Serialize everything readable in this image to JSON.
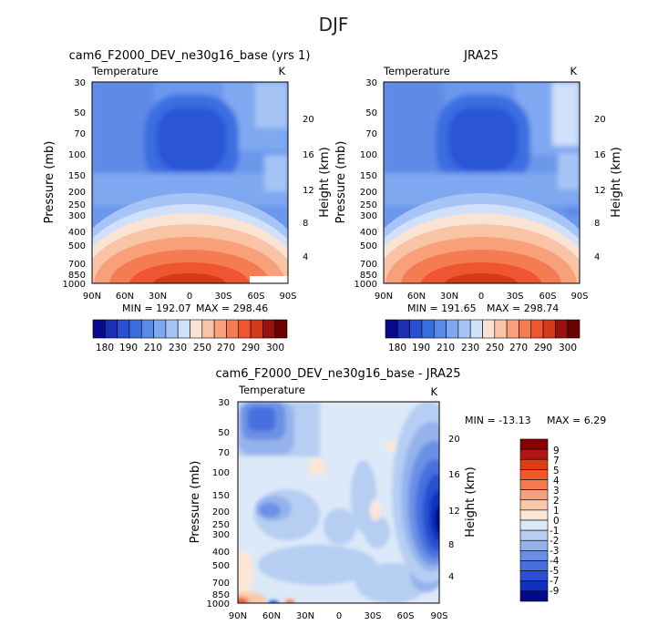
{
  "figure": {
    "title": "DJF"
  },
  "chart_data": [
    {
      "type": "heatmap",
      "title": "cam6_F2000_DEV_ne30g16_base (yrs 1)",
      "variable": "Temperature",
      "units": "K",
      "xlabel": "",
      "ylabel": "Pressure (mb)",
      "y2label": "Height (km)",
      "x_ticks": [
        "90N",
        "60N",
        "30N",
        "0",
        "30S",
        "60S",
        "90S"
      ],
      "y_ticks": [
        "30",
        "50",
        "70",
        "100",
        "150",
        "200",
        "250",
        "300",
        "400",
        "500",
        "700",
        "850",
        "1000"
      ],
      "y2_ticks": [
        "20",
        "16",
        "12",
        "8",
        "4"
      ],
      "min_label": "MIN = 192.07",
      "max_label": "MAX = 298.46",
      "min": 192.07,
      "max": 298.46,
      "colorbar_ticks": [
        "180",
        "190",
        "210",
        "230",
        "250",
        "270",
        "290",
        "300"
      ],
      "levels": [
        180,
        185,
        190,
        200,
        210,
        220,
        230,
        240,
        250,
        260,
        270,
        280,
        290,
        295,
        300
      ]
    },
    {
      "type": "heatmap",
      "title": "JRA25",
      "variable": "Temperature",
      "units": "K",
      "xlabel": "",
      "ylabel": "Pressure (mb)",
      "y2label": "Height (km)",
      "x_ticks": [
        "90N",
        "60N",
        "30N",
        "0",
        "30S",
        "60S",
        "90S"
      ],
      "y_ticks": [
        "30",
        "50",
        "70",
        "100",
        "150",
        "200",
        "250",
        "300",
        "400",
        "500",
        "700",
        "850",
        "1000"
      ],
      "y2_ticks": [
        "20",
        "16",
        "12",
        "8",
        "4"
      ],
      "min_label": "MIN = 191.65",
      "max_label": "MAX = 298.74",
      "min": 191.65,
      "max": 298.74,
      "colorbar_ticks": [
        "180",
        "190",
        "210",
        "230",
        "250",
        "270",
        "290",
        "300"
      ],
      "levels": [
        180,
        185,
        190,
        200,
        210,
        220,
        230,
        240,
        250,
        260,
        270,
        280,
        290,
        295,
        300
      ]
    },
    {
      "type": "heatmap",
      "title": "cam6_F2000_DEV_ne30g16_base - JRA25",
      "variable": "Temperature",
      "units": "K",
      "xlabel": "",
      "ylabel": "Pressure (mb)",
      "y2label": "Height (km)",
      "x_ticks": [
        "90N",
        "60N",
        "30N",
        "0",
        "30S",
        "60S",
        "90S"
      ],
      "y_ticks": [
        "30",
        "50",
        "70",
        "100",
        "150",
        "200",
        "250",
        "300",
        "400",
        "500",
        "700",
        "850",
        "1000"
      ],
      "y2_ticks": [
        "20",
        "16",
        "12",
        "8",
        "4"
      ],
      "min_label": "MIN = -13.13",
      "max_label": "MAX = 6.29",
      "min": -13.13,
      "max": 6.29,
      "colorbar_ticks": [
        "9",
        "7",
        "5",
        "4",
        "3",
        "2",
        "1",
        "0",
        "-1",
        "-2",
        "-3",
        "-4",
        "-5",
        "-7",
        "-9"
      ],
      "levels": [
        9,
        7,
        5,
        4,
        3,
        2,
        1,
        0,
        -1,
        -2,
        -3,
        -4,
        -5,
        -7,
        -9
      ]
    }
  ],
  "colors": {
    "abs_scale": [
      "#08088c",
      "#1a2fb4",
      "#2a4fd4",
      "#3a6ee0",
      "#5a8aea",
      "#7fa8f0",
      "#a6c4f6",
      "#cfe0fa",
      "#fbe3d3",
      "#f9c3a5",
      "#f7a07a",
      "#f47c52",
      "#ee5530",
      "#d43a1a",
      "#9a1010",
      "#6a0000"
    ],
    "diff_scale": [
      "#8b0000",
      "#b41414",
      "#e03c14",
      "#f05a28",
      "#f47c50",
      "#f7a07c",
      "#f9c8a8",
      "#fde6d6",
      "#dce9f8",
      "#b6cef2",
      "#94b2ec",
      "#6a90e6",
      "#4670de",
      "#2850d2",
      "#1030c0",
      "#000a8c"
    ]
  }
}
